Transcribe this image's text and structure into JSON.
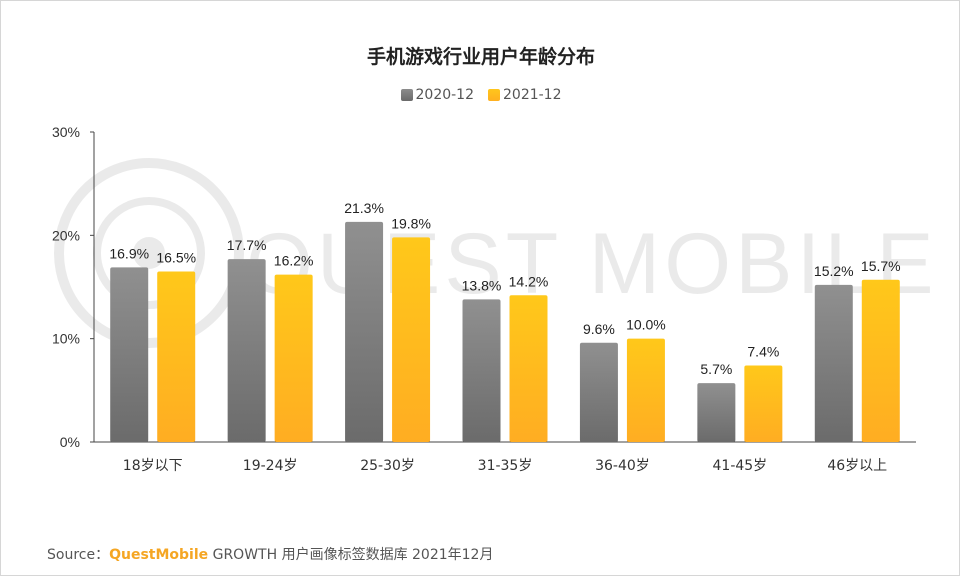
{
  "chart_data": {
    "type": "bar",
    "title": "手机游戏行业用户年龄分布",
    "categories": [
      "18岁以下",
      "19-24岁",
      "25-30岁",
      "31-35岁",
      "36-40岁",
      "41-45岁",
      "46岁以上"
    ],
    "series": [
      {
        "name": "2020-12",
        "values": [
          16.9,
          17.7,
          21.3,
          13.8,
          9.6,
          5.7,
          15.2
        ],
        "labels": [
          "16.9%",
          "17.7%",
          "21.3%",
          "13.8%",
          "9.6%",
          "5.7%",
          "15.2%"
        ],
        "color": "#7a7a7a"
      },
      {
        "name": "2021-12",
        "values": [
          16.5,
          16.2,
          19.8,
          14.2,
          10.0,
          7.4,
          15.7
        ],
        "labels": [
          "16.5%",
          "16.2%",
          "19.8%",
          "14.2%",
          "10.0%",
          "7.4%",
          "15.7%"
        ],
        "color": "#ffbd1a"
      }
    ],
    "ylim": [
      0,
      30
    ],
    "yticks": [
      0,
      10,
      20,
      30
    ],
    "ytick_labels": [
      "0%",
      "10%",
      "20%",
      "30%"
    ],
    "legend_position": "top-center",
    "grid": false
  },
  "watermark": "QUEST MOBILE",
  "source": {
    "prefix": "Source：",
    "brand": "QuestMobile",
    "text": " GROWTH 用户画像标签数据库 2021年12月"
  }
}
